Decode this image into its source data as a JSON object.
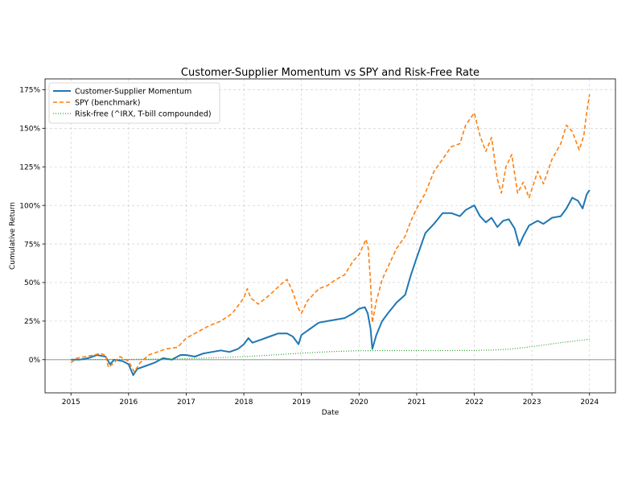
{
  "chart_data": {
    "type": "line",
    "title": "Customer-Supplier Momentum vs SPY and Risk-Free Rate",
    "xlabel": "Date",
    "ylabel": "Cumulative Return",
    "xlim": [
      2014.55,
      2024.45
    ],
    "ylim": [
      -0.215,
      1.82
    ],
    "x_ticks": [
      {
        "value": 2015,
        "label": "2015"
      },
      {
        "value": 2016,
        "label": "2016"
      },
      {
        "value": 2017,
        "label": "2017"
      },
      {
        "value": 2018,
        "label": "2018"
      },
      {
        "value": 2019,
        "label": "2019"
      },
      {
        "value": 2020,
        "label": "2020"
      },
      {
        "value": 2021,
        "label": "2021"
      },
      {
        "value": 2022,
        "label": "2022"
      },
      {
        "value": 2023,
        "label": "2023"
      },
      {
        "value": 2024,
        "label": "2024"
      }
    ],
    "y_ticks": [
      {
        "value": 0,
        "label": "0%"
      },
      {
        "value": 0.25,
        "label": "25%"
      },
      {
        "value": 0.5,
        "label": "50%"
      },
      {
        "value": 0.75,
        "label": "75%"
      },
      {
        "value": 1.0,
        "label": "100%"
      },
      {
        "value": 1.25,
        "label": "125%"
      },
      {
        "value": 1.5,
        "label": "150%"
      },
      {
        "value": 1.75,
        "label": "175%"
      }
    ],
    "grid": true,
    "zero_line": true,
    "legend_position": "upper-left",
    "series": [
      {
        "name": "Customer-Supplier Momentum",
        "color": "#1f77b4",
        "style": "solid",
        "points": [
          [
            2015.0,
            0.0
          ],
          [
            2015.15,
            0.0
          ],
          [
            2015.3,
            0.01
          ],
          [
            2015.45,
            0.03
          ],
          [
            2015.6,
            0.02
          ],
          [
            2015.68,
            -0.03
          ],
          [
            2015.75,
            0.0
          ],
          [
            2015.9,
            -0.01
          ],
          [
            2016.0,
            -0.03
          ],
          [
            2016.08,
            -0.1
          ],
          [
            2016.15,
            -0.06
          ],
          [
            2016.3,
            -0.04
          ],
          [
            2016.45,
            -0.02
          ],
          [
            2016.6,
            0.01
          ],
          [
            2016.75,
            0.0
          ],
          [
            2016.9,
            0.03
          ],
          [
            2017.0,
            0.03
          ],
          [
            2017.15,
            0.02
          ],
          [
            2017.3,
            0.04
          ],
          [
            2017.45,
            0.05
          ],
          [
            2017.6,
            0.06
          ],
          [
            2017.75,
            0.05
          ],
          [
            2017.9,
            0.07
          ],
          [
            2018.0,
            0.1
          ],
          [
            2018.08,
            0.14
          ],
          [
            2018.15,
            0.11
          ],
          [
            2018.3,
            0.13
          ],
          [
            2018.45,
            0.15
          ],
          [
            2018.6,
            0.17
          ],
          [
            2018.75,
            0.17
          ],
          [
            2018.85,
            0.15
          ],
          [
            2018.95,
            0.1
          ],
          [
            2019.0,
            0.16
          ],
          [
            2019.15,
            0.2
          ],
          [
            2019.3,
            0.24
          ],
          [
            2019.45,
            0.25
          ],
          [
            2019.6,
            0.26
          ],
          [
            2019.75,
            0.27
          ],
          [
            2019.9,
            0.3
          ],
          [
            2020.0,
            0.33
          ],
          [
            2020.1,
            0.34
          ],
          [
            2020.15,
            0.3
          ],
          [
            2020.2,
            0.2
          ],
          [
            2020.23,
            0.07
          ],
          [
            2020.3,
            0.16
          ],
          [
            2020.4,
            0.25
          ],
          [
            2020.5,
            0.3
          ],
          [
            2020.65,
            0.37
          ],
          [
            2020.8,
            0.42
          ],
          [
            2020.9,
            0.55
          ],
          [
            2021.0,
            0.66
          ],
          [
            2021.15,
            0.82
          ],
          [
            2021.3,
            0.88
          ],
          [
            2021.45,
            0.95
          ],
          [
            2021.6,
            0.95
          ],
          [
            2021.75,
            0.93
          ],
          [
            2021.85,
            0.97
          ],
          [
            2022.0,
            1.0
          ],
          [
            2022.1,
            0.93
          ],
          [
            2022.2,
            0.89
          ],
          [
            2022.3,
            0.92
          ],
          [
            2022.4,
            0.86
          ],
          [
            2022.5,
            0.9
          ],
          [
            2022.6,
            0.91
          ],
          [
            2022.7,
            0.85
          ],
          [
            2022.78,
            0.74
          ],
          [
            2022.85,
            0.8
          ],
          [
            2022.95,
            0.87
          ],
          [
            2023.1,
            0.9
          ],
          [
            2023.2,
            0.88
          ],
          [
            2023.35,
            0.92
          ],
          [
            2023.5,
            0.93
          ],
          [
            2023.6,
            0.98
          ],
          [
            2023.7,
            1.05
          ],
          [
            2023.8,
            1.03
          ],
          [
            2023.88,
            0.98
          ],
          [
            2023.95,
            1.07
          ],
          [
            2024.0,
            1.1
          ]
        ]
      },
      {
        "name": "SPY (benchmark)",
        "color": "#ff7f0e",
        "style": "dashed",
        "points": [
          [
            2015.0,
            -0.02
          ],
          [
            2015.1,
            0.01
          ],
          [
            2015.25,
            0.02
          ],
          [
            2015.4,
            0.03
          ],
          [
            2015.5,
            0.04
          ],
          [
            2015.6,
            0.03
          ],
          [
            2015.65,
            -0.05
          ],
          [
            2015.75,
            -0.02
          ],
          [
            2015.85,
            0.02
          ],
          [
            2016.0,
            -0.01
          ],
          [
            2016.1,
            -0.08
          ],
          [
            2016.2,
            -0.02
          ],
          [
            2016.35,
            0.03
          ],
          [
            2016.5,
            0.05
          ],
          [
            2016.65,
            0.07
          ],
          [
            2016.85,
            0.08
          ],
          [
            2017.0,
            0.14
          ],
          [
            2017.2,
            0.18
          ],
          [
            2017.4,
            0.22
          ],
          [
            2017.6,
            0.25
          ],
          [
            2017.8,
            0.3
          ],
          [
            2018.0,
            0.4
          ],
          [
            2018.06,
            0.46
          ],
          [
            2018.12,
            0.4
          ],
          [
            2018.25,
            0.36
          ],
          [
            2018.45,
            0.42
          ],
          [
            2018.65,
            0.49
          ],
          [
            2018.75,
            0.52
          ],
          [
            2018.85,
            0.44
          ],
          [
            2018.95,
            0.33
          ],
          [
            2019.0,
            0.3
          ],
          [
            2019.1,
            0.38
          ],
          [
            2019.3,
            0.46
          ],
          [
            2019.45,
            0.48
          ],
          [
            2019.6,
            0.52
          ],
          [
            2019.75,
            0.55
          ],
          [
            2019.9,
            0.64
          ],
          [
            2020.0,
            0.68
          ],
          [
            2020.12,
            0.78
          ],
          [
            2020.16,
            0.72
          ],
          [
            2020.2,
            0.5
          ],
          [
            2020.23,
            0.24
          ],
          [
            2020.3,
            0.38
          ],
          [
            2020.4,
            0.52
          ],
          [
            2020.55,
            0.64
          ],
          [
            2020.65,
            0.72
          ],
          [
            2020.8,
            0.8
          ],
          [
            2020.9,
            0.9
          ],
          [
            2021.0,
            0.98
          ],
          [
            2021.15,
            1.08
          ],
          [
            2021.3,
            1.22
          ],
          [
            2021.45,
            1.3
          ],
          [
            2021.6,
            1.38
          ],
          [
            2021.75,
            1.4
          ],
          [
            2021.85,
            1.52
          ],
          [
            2022.0,
            1.6
          ],
          [
            2022.1,
            1.45
          ],
          [
            2022.2,
            1.35
          ],
          [
            2022.3,
            1.44
          ],
          [
            2022.4,
            1.17
          ],
          [
            2022.47,
            1.08
          ],
          [
            2022.55,
            1.25
          ],
          [
            2022.65,
            1.33
          ],
          [
            2022.75,
            1.08
          ],
          [
            2022.85,
            1.15
          ],
          [
            2022.95,
            1.05
          ],
          [
            2023.1,
            1.22
          ],
          [
            2023.2,
            1.14
          ],
          [
            2023.35,
            1.3
          ],
          [
            2023.5,
            1.4
          ],
          [
            2023.6,
            1.52
          ],
          [
            2023.7,
            1.48
          ],
          [
            2023.82,
            1.36
          ],
          [
            2023.9,
            1.45
          ],
          [
            2023.95,
            1.6
          ],
          [
            2024.0,
            1.72
          ]
        ]
      },
      {
        "name": "Risk-free (^IRX, T-bill compounded)",
        "color": "#2ca02c",
        "style": "dotted",
        "points": [
          [
            2015.0,
            0.0
          ],
          [
            2016.0,
            0.002
          ],
          [
            2017.0,
            0.006
          ],
          [
            2017.5,
            0.012
          ],
          [
            2018.0,
            0.02
          ],
          [
            2018.5,
            0.03
          ],
          [
            2019.0,
            0.042
          ],
          [
            2019.5,
            0.052
          ],
          [
            2020.0,
            0.058
          ],
          [
            2020.5,
            0.059
          ],
          [
            2021.0,
            0.059
          ],
          [
            2021.5,
            0.059
          ],
          [
            2022.0,
            0.06
          ],
          [
            2022.3,
            0.062
          ],
          [
            2022.6,
            0.068
          ],
          [
            2022.9,
            0.08
          ],
          [
            2023.2,
            0.095
          ],
          [
            2023.5,
            0.11
          ],
          [
            2023.8,
            0.123
          ],
          [
            2024.0,
            0.133
          ]
        ]
      }
    ]
  }
}
